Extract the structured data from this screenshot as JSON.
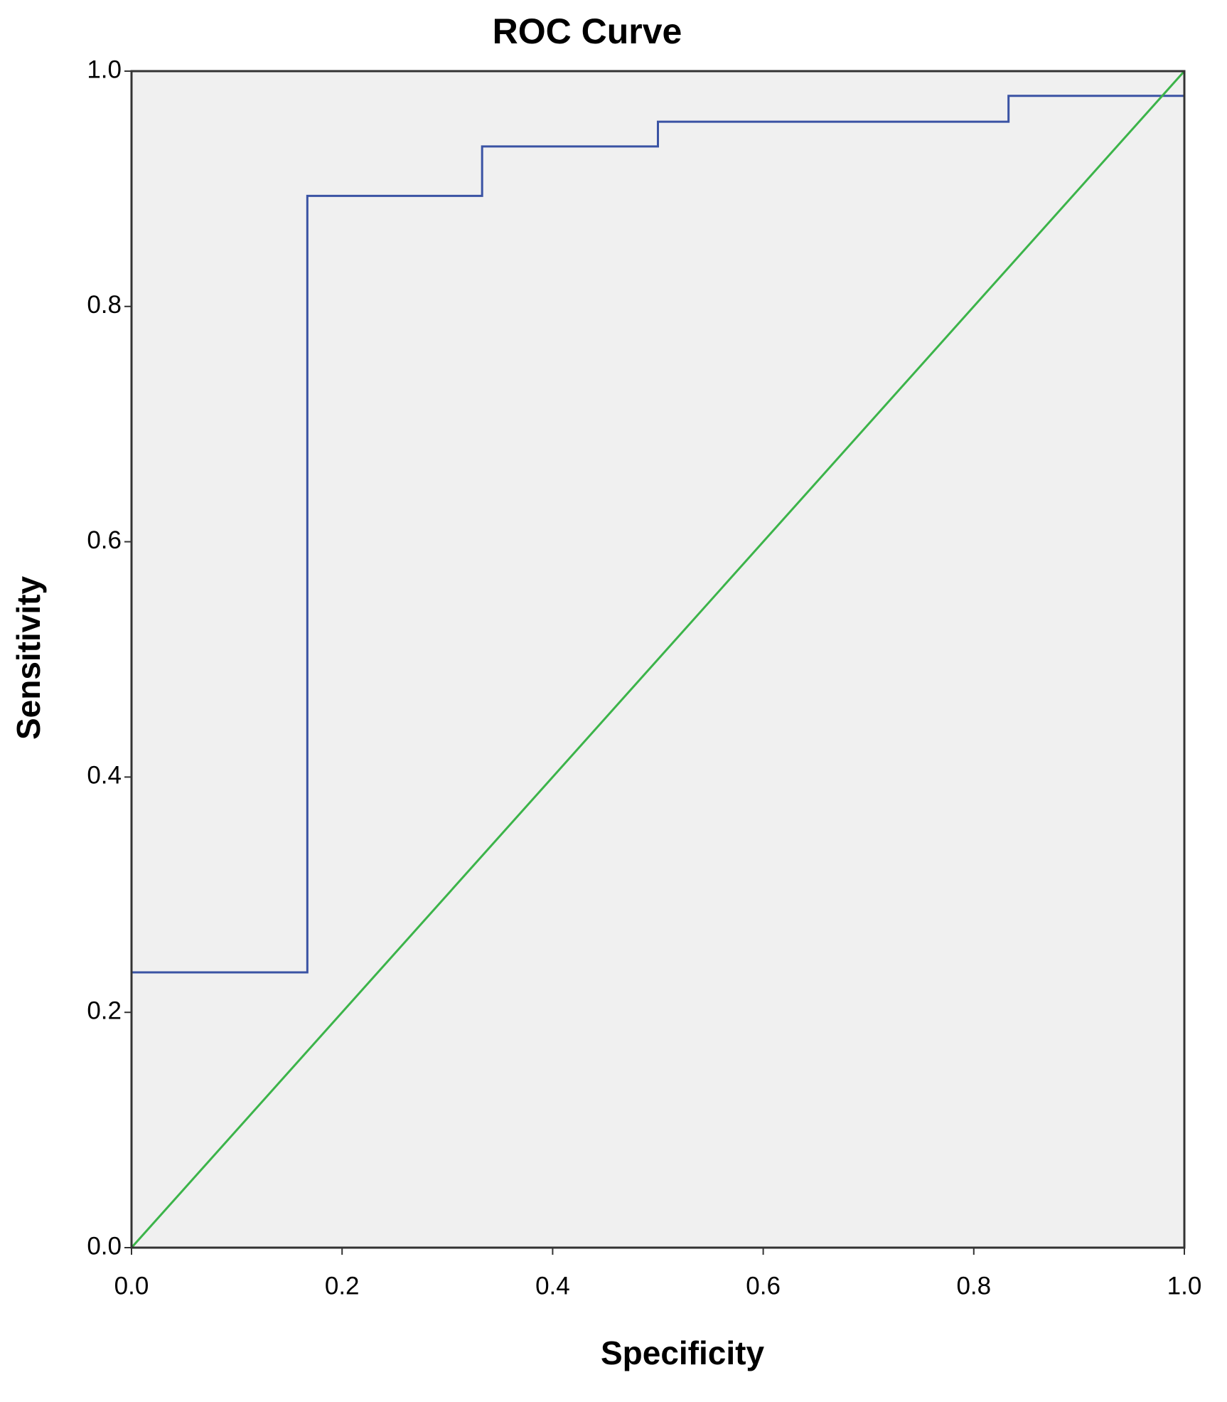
{
  "chart_data": {
    "type": "line",
    "title": "ROC Curve",
    "x_label": "Specificity",
    "y_label": "Sensitivity",
    "series": [
      {
        "color": "#3a53a4",
        "x": [
          0,
          0,
          0.167,
          0.167,
          0.333,
          0.333,
          0.5,
          0.5,
          0.833,
          0.833,
          1,
          1
        ],
        "values": [
          0,
          0.234,
          0.234,
          0.894,
          0.894,
          0.936,
          0.936,
          0.957,
          0.957,
          0.979,
          0.979,
          1
        ]
      },
      {
        "color": "#3cb44a",
        "x": [
          0,
          1
        ],
        "values": [
          0,
          1
        ]
      }
    ],
    "xlim": [
      0,
      1
    ],
    "ylim": [
      0,
      1
    ],
    "xticks": [
      {
        "value": 0,
        "label": "0.0"
      },
      {
        "value": 0.2,
        "label": "0.2"
      },
      {
        "value": 0.4,
        "label": "0.4"
      },
      {
        "value": 0.6,
        "label": "0.6"
      },
      {
        "value": 0.8,
        "label": "0.8"
      },
      {
        "value": 1,
        "label": "1.0"
      }
    ],
    "yticks": [
      {
        "value": 0,
        "label": "0.0"
      },
      {
        "value": 0.2,
        "label": "0.2"
      },
      {
        "value": 0.4,
        "label": "0.4"
      },
      {
        "value": 0.6,
        "label": "0.6"
      },
      {
        "value": 0.8,
        "label": "0.8"
      },
      {
        "value": 1,
        "label": "1.0"
      }
    ],
    "background": "#f0f0f0"
  }
}
